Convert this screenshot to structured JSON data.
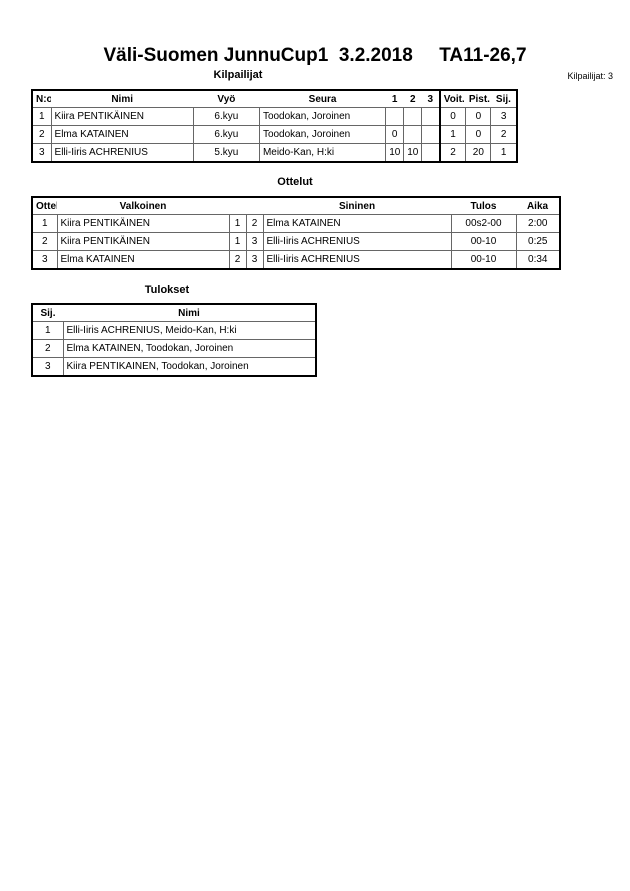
{
  "title": "Väli-Suomen JunnuCup1  3.2.2018     TA11-26,7",
  "competitors": {
    "heading": "Kilpailijat",
    "count_label": "Kilpailijat: 3",
    "columns": [
      "N:o",
      "Nimi",
      "Vyö",
      "Seura",
      "1",
      "2",
      "3",
      "Voit.",
      "Pist.",
      "Sij."
    ],
    "rows": [
      [
        "1",
        "Kiira PENTIKÄINEN",
        "6.kyu",
        "Toodokan, Joroinen",
        "",
        "",
        "",
        "0",
        "0",
        "3"
      ],
      [
        "2",
        "Elma KATAINEN",
        "6.kyu",
        "Toodokan, Joroinen",
        "0",
        "",
        "",
        "1",
        "0",
        "2"
      ],
      [
        "3",
        "Elli-Iiris ACHRENIUS",
        "5.kyu",
        "Meido-Kan, H:ki",
        "10",
        "10",
        "",
        "2",
        "20",
        "1"
      ]
    ]
  },
  "matches": {
    "heading": "Ottelut",
    "columns": [
      "Ottelu",
      "Valkoinen",
      "",
      "",
      "Sininen",
      "Tulos",
      "Aika"
    ],
    "rows": [
      [
        "1",
        "Kiira PENTIKÄINEN",
        "1",
        "2",
        "Elma KATAINEN",
        "00s2-00",
        "2:00"
      ],
      [
        "2",
        "Kiira PENTIKÄINEN",
        "1",
        "3",
        "Elli-Iiris ACHRENIUS",
        "00-10",
        "0:25"
      ],
      [
        "3",
        "Elma KATAINEN",
        "2",
        "3",
        "Elli-Iiris ACHRENIUS",
        "00-10",
        "0:34"
      ]
    ]
  },
  "results": {
    "heading": "Tulokset",
    "columns": [
      "Sij.",
      "Nimi"
    ],
    "rows": [
      [
        "1",
        "Elli-Iiris ACHRENIUS, Meido-Kan, H:ki"
      ],
      [
        "2",
        "Elma KATAINEN, Toodokan, Joroinen"
      ],
      [
        "3",
        "Kiira PENTIKAINEN, Toodokan, Joroinen"
      ]
    ]
  }
}
